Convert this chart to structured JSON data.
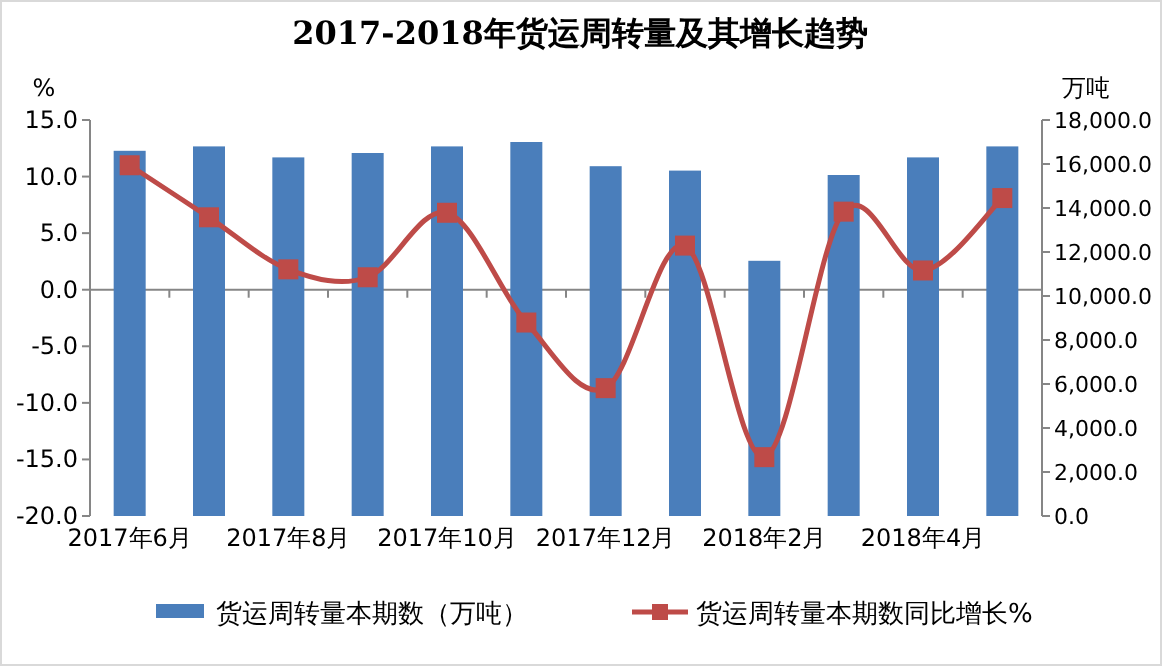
{
  "chart_data": {
    "type": "bar",
    "title": "2017-2018年货运周转量及其增长趋势",
    "categories": [
      "2017年6月",
      null,
      "2017年8月",
      null,
      "2017年10月",
      null,
      "2017年12月",
      null,
      "2018年2月",
      null,
      "2018年4月",
      null
    ],
    "ylabel": "%",
    "y2label": "万吨",
    "series": [
      {
        "name": "货运周转量本期数（万吨）",
        "axis": "y2",
        "color": "#4a7ebb",
        "values": [
          16600,
          16800,
          16300,
          16500,
          16800,
          17000,
          15900,
          15700,
          11600,
          15500,
          16300,
          16800
        ]
      },
      {
        "name": "货运周转量本期数同比增长%",
        "type": "line",
        "axis": "y",
        "color": "#be4b48",
        "values": [
          11.0,
          6.4,
          1.8,
          1.1,
          6.8,
          -2.9,
          -8.7,
          3.9,
          -14.8,
          6.9,
          1.7,
          8.1
        ]
      }
    ],
    "ylim": [
      -20,
      15
    ],
    "yticks": [
      {
        "value": -20,
        "label": "-20.0"
      },
      {
        "value": -15,
        "label": "-15.0"
      },
      {
        "value": -10,
        "label": "-10.0"
      },
      {
        "value": -5,
        "label": "-5.0"
      },
      {
        "value": 0,
        "label": "0.0"
      },
      {
        "value": 5,
        "label": "5.0"
      },
      {
        "value": 10,
        "label": "10.0"
      },
      {
        "value": 15,
        "label": "15.0"
      }
    ],
    "y2lim": [
      0,
      18000
    ],
    "y2ticks": [
      {
        "value": 0,
        "label": "0.0"
      },
      {
        "value": 2000,
        "label": "2,000.0"
      },
      {
        "value": 4000,
        "label": "4,000.0"
      },
      {
        "value": 6000,
        "label": "6,000.0"
      },
      {
        "value": 8000,
        "label": "8,000.0"
      },
      {
        "value": 10000,
        "label": "10,000.0"
      },
      {
        "value": 12000,
        "label": "12,000.0"
      },
      {
        "value": 14000,
        "label": "14,000.0"
      },
      {
        "value": 16000,
        "label": "16,000.0"
      },
      {
        "value": 18000,
        "label": "18,000.0"
      }
    ],
    "marker": "square",
    "legend": "bottom"
  }
}
